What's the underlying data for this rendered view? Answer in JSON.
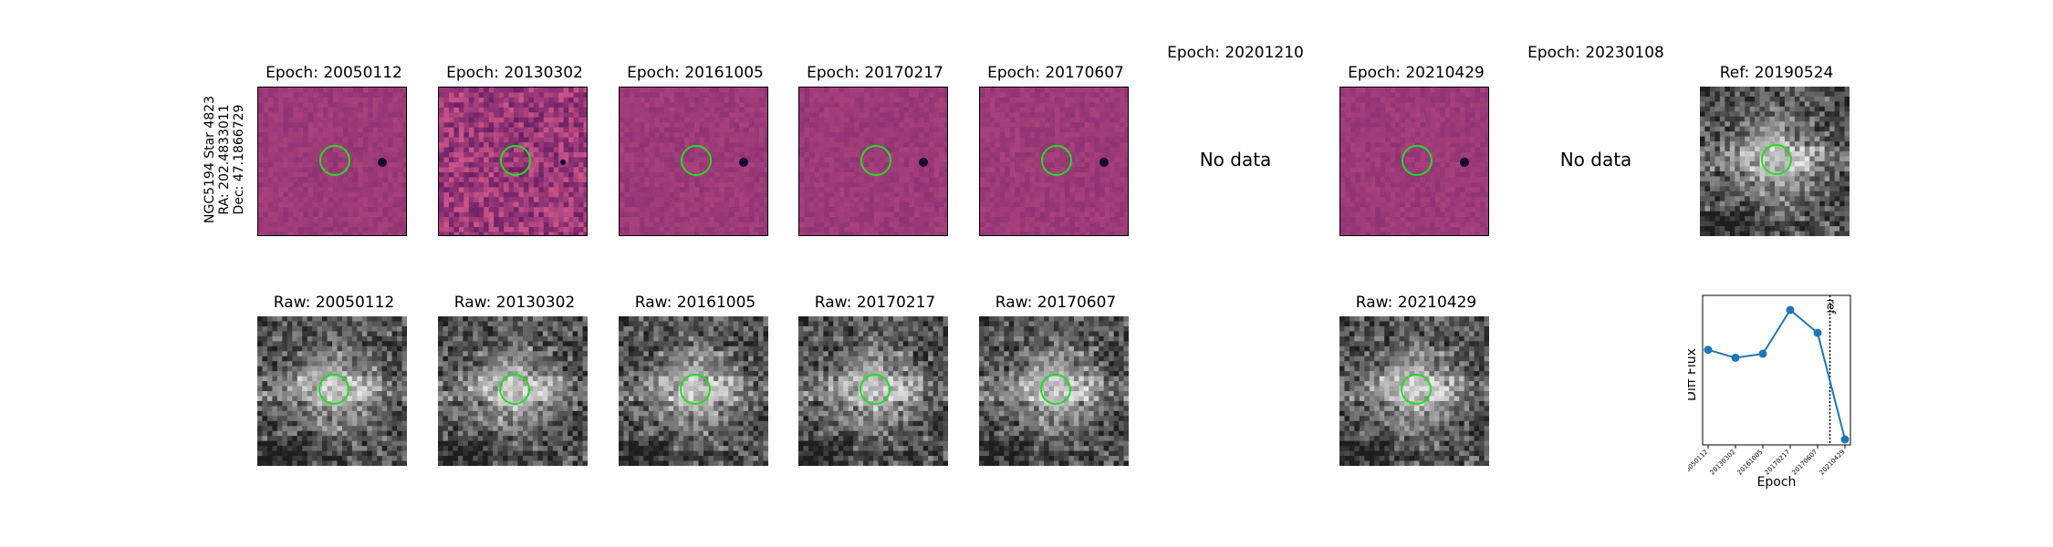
{
  "star": {
    "name": "NGC5194 Star 4823",
    "ra": "RA: 202.4833011",
    "dec": "Dec: 47.1866729"
  },
  "diff_panels": [
    {
      "title": "Epoch: 20050112",
      "has_data": true,
      "noise": "low"
    },
    {
      "title": "Epoch: 20130302",
      "has_data": true,
      "noise": "high"
    },
    {
      "title": "Epoch: 20161005",
      "has_data": true,
      "noise": "low"
    },
    {
      "title": "Epoch: 20170217",
      "has_data": true,
      "noise": "low"
    },
    {
      "title": "Epoch: 20170607",
      "has_data": true,
      "noise": "low"
    },
    {
      "title": "Epoch: 20201210",
      "has_data": false,
      "nodata_text": "No data"
    },
    {
      "title": "Epoch: 20210429",
      "has_data": true,
      "noise": "low"
    },
    {
      "title": "Epoch: 20230108",
      "has_data": false,
      "nodata_text": "No data"
    }
  ],
  "ref_panel": {
    "title": "Ref: 20190524"
  },
  "raw_panels": [
    {
      "title": "Raw: 20050112"
    },
    {
      "title": "Raw: 20130302"
    },
    {
      "title": "Raw: 20161005"
    },
    {
      "title": "Raw: 20170217"
    },
    {
      "title": "Raw: 20170607"
    },
    {
      "title": "Raw: 20210429"
    }
  ],
  "colors": {
    "diff_base": "#9c3a78",
    "circle": "#22dd22",
    "line": "#1f77b4"
  },
  "chart_data": {
    "type": "line",
    "x": [
      "20050112",
      "20130302",
      "20161005",
      "20170217",
      "20170607",
      "20210429"
    ],
    "values": [
      0.55,
      0.47,
      0.51,
      0.95,
      0.72,
      -0.35
    ],
    "ylabel": "Diff Flux",
    "xlabel": "Epoch",
    "ref_marker": {
      "label": "ref",
      "position": "between 20170607 and 20210429"
    },
    "yticks": "none"
  }
}
